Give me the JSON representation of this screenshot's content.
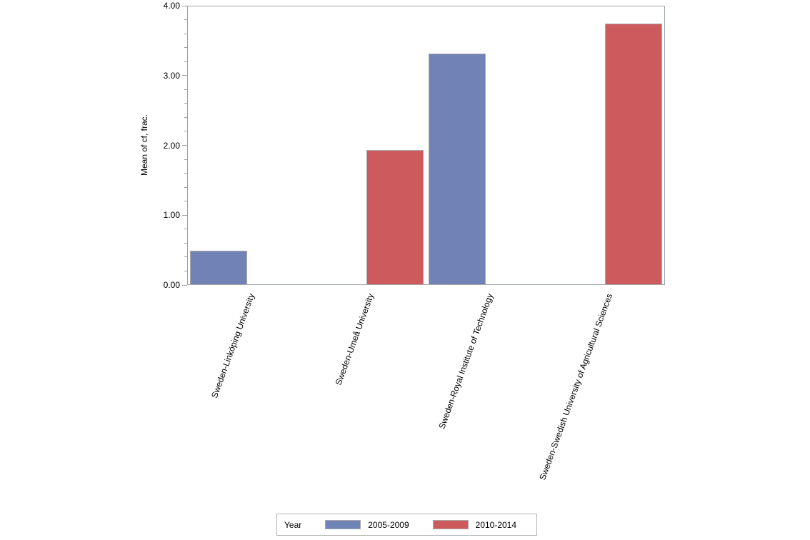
{
  "chart_data": {
    "type": "bar",
    "title": "",
    "xlabel": "",
    "ylabel": "Mean of cf, frac.",
    "ylim": [
      0,
      4
    ],
    "ytick_step": 1.0,
    "ytick_minor_step": 0.2,
    "ytick_labels": [
      "0.00",
      "1.00",
      "2.00",
      "3.00",
      "4.00"
    ],
    "grid": false,
    "categories": [
      "Sweden-Linköping University",
      "Sweden-Umeå University",
      "Sweden-Royal Institute of Technology",
      "Sweden-Swedish University of Agricultural Sciences"
    ],
    "series": [
      {
        "name": "2005-2009",
        "color": "#7182b7",
        "values": [
          0.49,
          null,
          3.31,
          null
        ]
      },
      {
        "name": "2010-2014",
        "color": "#cd5b5e",
        "values": [
          null,
          1.93,
          null,
          3.74
        ]
      }
    ],
    "legend": {
      "title": "Year",
      "position": "bottom"
    }
  },
  "colors": {
    "bar_border": "#a9a9a9",
    "axis": "#9ba1a7",
    "text": "#000000"
  }
}
